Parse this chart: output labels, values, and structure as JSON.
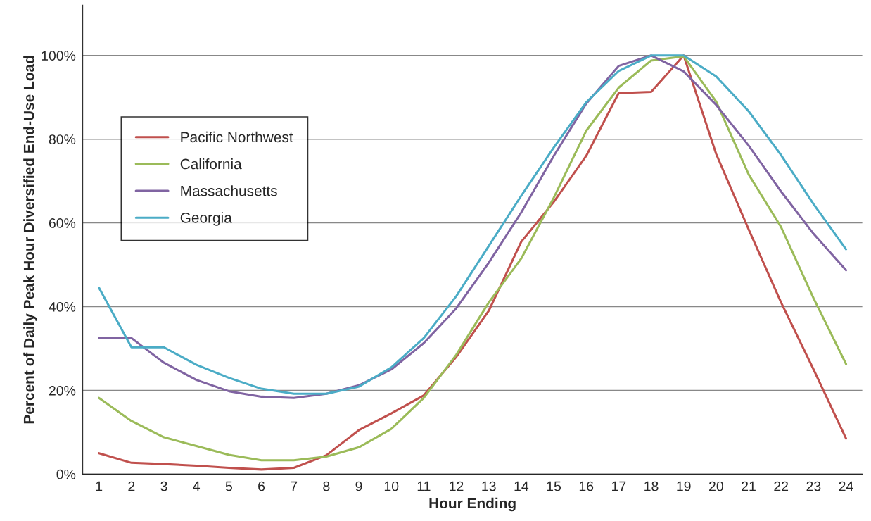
{
  "chart_data": {
    "type": "line",
    "xlabel": "Hour Ending",
    "ylabel": "Percent of Daily Peak Hour Diversified End-Use Load",
    "categories": [
      "1",
      "2",
      "3",
      "4",
      "5",
      "6",
      "7",
      "8",
      "9",
      "10",
      "11",
      "12",
      "13",
      "14",
      "15",
      "16",
      "17",
      "18",
      "19",
      "20",
      "21",
      "22",
      "23",
      "24"
    ],
    "series": [
      {
        "name": "Pacific Northwest",
        "color": "#c0504d",
        "values": [
          5,
          2.7,
          2.4,
          2,
          1.5,
          1.1,
          1.5,
          4.5,
          10.5,
          14.5,
          18.8,
          28,
          39,
          55.5,
          65,
          76,
          91,
          91.3,
          100,
          76.5,
          58.5,
          41,
          25,
          8.5
        ]
      },
      {
        "name": "California",
        "color": "#9bbb59",
        "values": [
          18.2,
          12.7,
          8.8,
          6.7,
          4.6,
          3.3,
          3.3,
          4.2,
          6.4,
          10.8,
          18.2,
          28.5,
          41,
          51.5,
          66,
          82,
          92.3,
          98.8,
          99.8,
          89,
          71.6,
          59,
          42,
          26.3
        ]
      },
      {
        "name": "Massachusetts",
        "color": "#8064a2",
        "values": [
          32.5,
          32.5,
          26.6,
          22.5,
          19.8,
          18.5,
          18.2,
          19.2,
          21.2,
          25,
          31.3,
          39.6,
          50.5,
          62.5,
          76,
          88.5,
          97.5,
          100,
          96.2,
          88.2,
          78.5,
          67.5,
          57.4,
          48.7
        ]
      },
      {
        "name": "Georgia",
        "color": "#4bacc6",
        "values": [
          44.5,
          30.3,
          30.3,
          26.1,
          23,
          20.4,
          19.2,
          19.2,
          20.9,
          25.5,
          32.5,
          42.5,
          54.5,
          66.5,
          78,
          88.8,
          96.3,
          100,
          100,
          95,
          86.7,
          76.2,
          64.5,
          53.7
        ]
      }
    ],
    "ylim": [
      0,
      112
    ],
    "yticks": [
      {
        "value": 0,
        "label": "0%"
      },
      {
        "value": 20,
        "label": "20%"
      },
      {
        "value": 40,
        "label": "40%"
      },
      {
        "value": 60,
        "label": "60%"
      },
      {
        "value": 80,
        "label": "80%"
      },
      {
        "value": 100,
        "label": "100%"
      }
    ],
    "grid": "y",
    "legend": "left",
    "marker": "none",
    "line_style": "solid"
  }
}
